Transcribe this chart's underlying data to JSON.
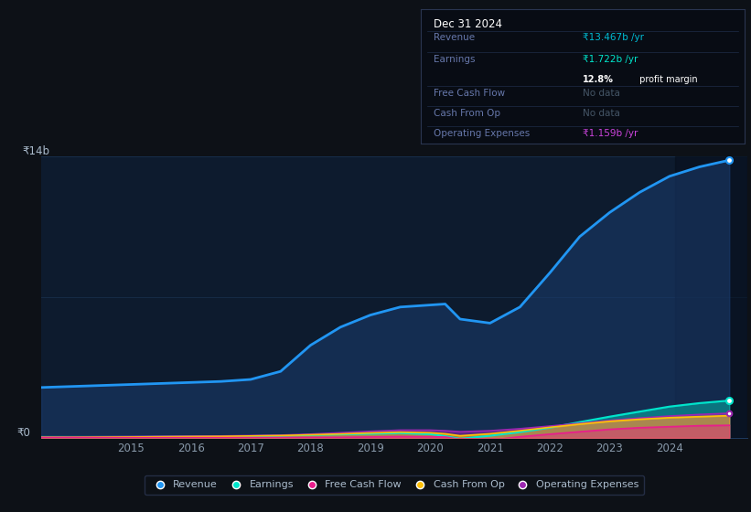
{
  "background_color": "#0d1117",
  "plot_bg_color": "#0d1b2e",
  "ylabel_top": "₹14b",
  "ylabel_bottom": "₹0",
  "x_labels": [
    "2015",
    "2016",
    "2017",
    "2018",
    "2019",
    "2020",
    "2021",
    "2022",
    "2023",
    "2024"
  ],
  "years": [
    2013.5,
    2014,
    2014.5,
    2015,
    2015.5,
    2016,
    2016.5,
    2017,
    2017.5,
    2018,
    2018.5,
    2019,
    2019.5,
    2020,
    2020.25,
    2020.5,
    2021,
    2021.5,
    2022,
    2022.5,
    2023,
    2023.5,
    2024,
    2024.5,
    2025
  ],
  "revenue": [
    2.5,
    2.55,
    2.6,
    2.65,
    2.7,
    2.75,
    2.8,
    2.9,
    3.3,
    4.6,
    5.5,
    6.1,
    6.5,
    6.6,
    6.65,
    5.9,
    5.7,
    6.5,
    8.2,
    10.0,
    11.2,
    12.2,
    13.0,
    13.467,
    13.8
  ],
  "earnings": [
    0.04,
    0.04,
    0.04,
    0.04,
    0.05,
    0.06,
    0.07,
    0.08,
    0.1,
    0.14,
    0.17,
    0.2,
    0.23,
    0.18,
    0.08,
    -0.05,
    0.1,
    0.28,
    0.5,
    0.78,
    1.05,
    1.3,
    1.55,
    1.722,
    1.85
  ],
  "free_cash_flow": [
    0.005,
    0.005,
    0.005,
    0.005,
    0.005,
    0.005,
    0.005,
    0.005,
    0.01,
    0.015,
    0.02,
    0.04,
    0.06,
    0.05,
    0.04,
    -0.08,
    -0.12,
    0.05,
    0.18,
    0.3,
    0.42,
    0.5,
    0.55,
    0.6,
    0.62
  ],
  "cash_from_op": [
    0.02,
    0.02,
    0.03,
    0.04,
    0.05,
    0.06,
    0.07,
    0.09,
    0.11,
    0.15,
    0.19,
    0.24,
    0.28,
    0.25,
    0.2,
    0.1,
    0.2,
    0.35,
    0.52,
    0.68,
    0.82,
    0.92,
    1.0,
    1.05,
    1.1
  ],
  "operating_expenses": [
    0.03,
    0.04,
    0.05,
    0.06,
    0.07,
    0.08,
    0.09,
    0.11,
    0.13,
    0.18,
    0.25,
    0.32,
    0.38,
    0.38,
    0.35,
    0.3,
    0.35,
    0.45,
    0.58,
    0.72,
    0.86,
    0.98,
    1.08,
    1.159,
    1.22
  ],
  "revenue_color": "#2196f3",
  "earnings_color": "#00e5cc",
  "free_cash_flow_color": "#e91e8c",
  "cash_from_op_color": "#ffc107",
  "operating_expenses_color": "#9c27b0",
  "revenue_fill": "#1a3a6a",
  "grid_color": "#1e3a5f",
  "text_color": "#8899aa",
  "label_color": "#aabbcc",
  "info_revenue_color": "#00bcd4",
  "info_earnings_color": "#00e5cc",
  "info_opex_color": "#cc44dd",
  "ylim": [
    0,
    14
  ],
  "xlim_start": 2013.5,
  "xlim_end": 2025.3,
  "shade_start": 2024.1,
  "legend_items": [
    "Revenue",
    "Earnings",
    "Free Cash Flow",
    "Cash From Op",
    "Operating Expenses"
  ]
}
